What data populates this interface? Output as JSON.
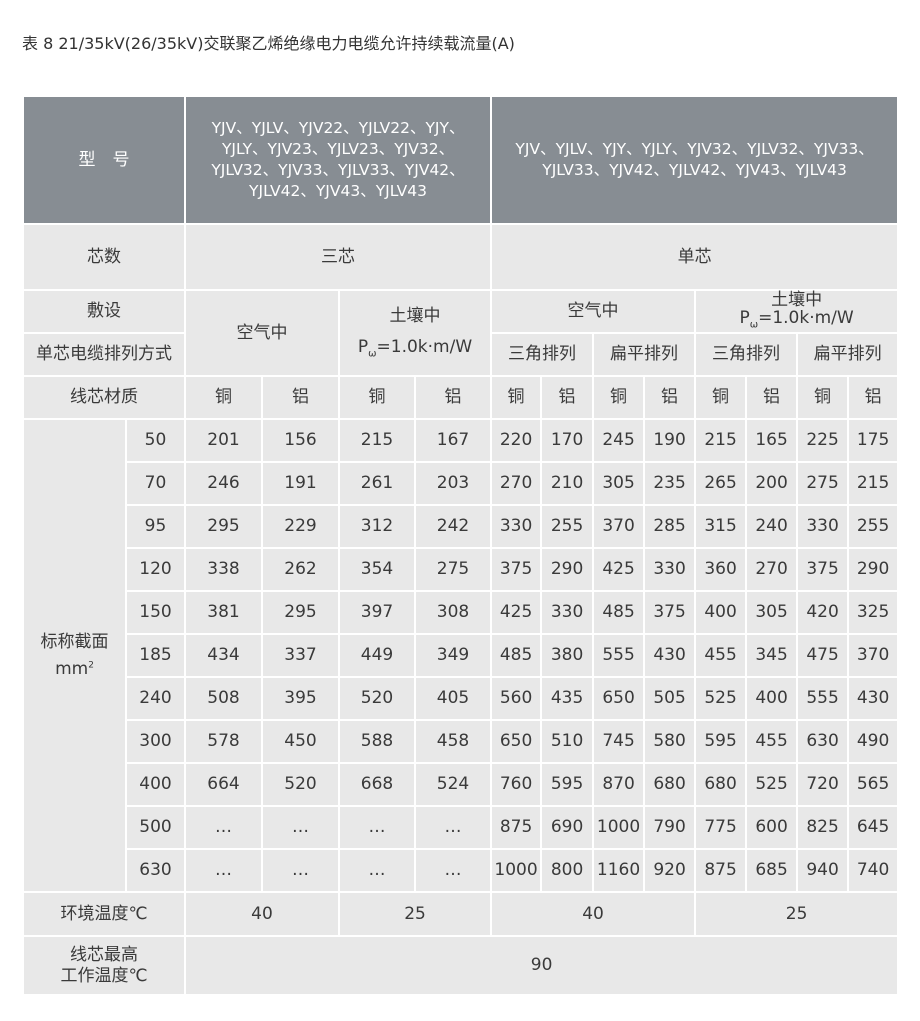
{
  "caption": "表 8  21/35kV(26/35kV)交联聚乙烯绝缘电力电缆允许持续载流量(A)",
  "header": {
    "model_label": "型　号",
    "three_core_models": "YJV、YJLV、YJV22、YJLV22、YJY、YJLY、YJV23、YJLV23、YJV32、YJLV32、YJV33、YJLV33、YJV42、YJLV42、YJV43、YJLV43",
    "single_core_models": "YJV、YJLV、YJY、YJLY、YJV32、YJLV32、YJV33、YJLV33、YJV42、YJLV42、YJV43、YJLV43"
  },
  "core_row": {
    "label": "芯数",
    "three": "三芯",
    "single": "单芯"
  },
  "laying_row": {
    "label": "敷设",
    "air": "空气中",
    "soil": "土壤中",
    "soil_resistivity_p": "P",
    "soil_resistivity_sub": "ω",
    "soil_resistivity_value": "=1.0k·m/W"
  },
  "arrangement_row": {
    "label": "单芯电缆排列方式",
    "trefoil": "三角排列",
    "flat": "扁平排列"
  },
  "material_row": {
    "label": "线芯材质",
    "copper": "铜",
    "aluminum": "铝"
  },
  "section_label": {
    "text": "标称截面",
    "unit": "mm",
    "unit_sup": "2"
  },
  "rows": [
    {
      "size": "50",
      "values": [
        "201",
        "156",
        "215",
        "167",
        "220",
        "170",
        "245",
        "190",
        "215",
        "165",
        "225",
        "175"
      ]
    },
    {
      "size": "70",
      "values": [
        "246",
        "191",
        "261",
        "203",
        "270",
        "210",
        "305",
        "235",
        "265",
        "200",
        "275",
        "215"
      ]
    },
    {
      "size": "95",
      "values": [
        "295",
        "229",
        "312",
        "242",
        "330",
        "255",
        "370",
        "285",
        "315",
        "240",
        "330",
        "255"
      ]
    },
    {
      "size": "120",
      "values": [
        "338",
        "262",
        "354",
        "275",
        "375",
        "290",
        "425",
        "330",
        "360",
        "270",
        "375",
        "290"
      ]
    },
    {
      "size": "150",
      "values": [
        "381",
        "295",
        "397",
        "308",
        "425",
        "330",
        "485",
        "375",
        "400",
        "305",
        "420",
        "325"
      ]
    },
    {
      "size": "185",
      "values": [
        "434",
        "337",
        "449",
        "349",
        "485",
        "380",
        "555",
        "430",
        "455",
        "345",
        "475",
        "370"
      ]
    },
    {
      "size": "240",
      "values": [
        "508",
        "395",
        "520",
        "405",
        "560",
        "435",
        "650",
        "505",
        "525",
        "400",
        "555",
        "430"
      ]
    },
    {
      "size": "300",
      "values": [
        "578",
        "450",
        "588",
        "458",
        "650",
        "510",
        "745",
        "580",
        "595",
        "455",
        "630",
        "490"
      ]
    },
    {
      "size": "400",
      "values": [
        "664",
        "520",
        "668",
        "524",
        "760",
        "595",
        "870",
        "680",
        "680",
        "525",
        "720",
        "565"
      ]
    },
    {
      "size": "500",
      "values": [
        "…",
        "…",
        "…",
        "…",
        "875",
        "690",
        "1000",
        "790",
        "775",
        "600",
        "825",
        "645"
      ]
    },
    {
      "size": "630",
      "values": [
        "…",
        "…",
        "…",
        "…",
        "1000",
        "800",
        "1160",
        "920",
        "875",
        "685",
        "940",
        "740"
      ]
    }
  ],
  "env_row": {
    "label": "环境温度℃",
    "values": [
      "40",
      "25",
      "40",
      "25"
    ]
  },
  "max_row": {
    "label_line1": "线芯最高",
    "label_line2": "工作温度℃",
    "value": "90"
  }
}
